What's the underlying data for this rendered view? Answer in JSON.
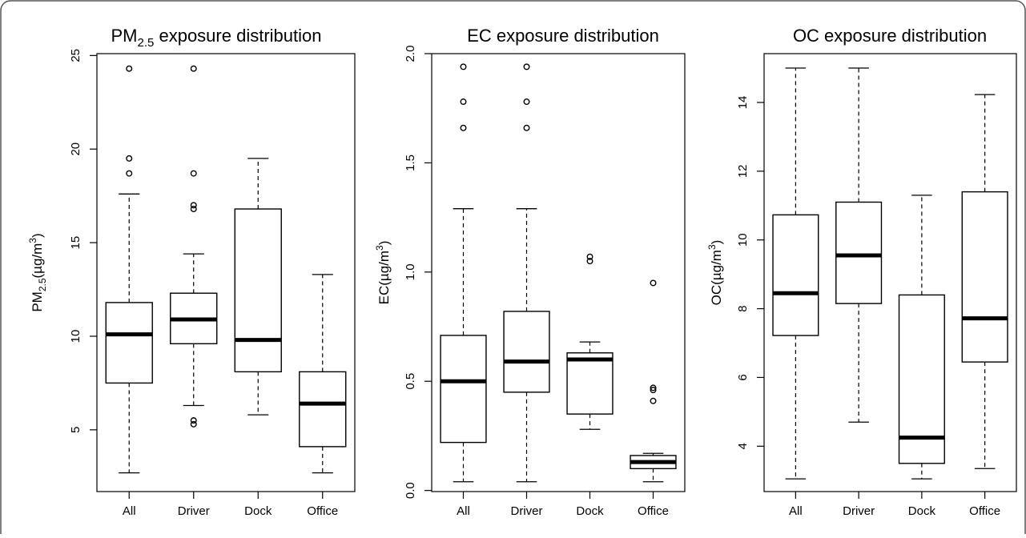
{
  "chart_data": [
    {
      "type": "box",
      "title": {
        "main": "PM",
        "sub": "2.5",
        "rest": " exposure distribution"
      },
      "xlabel": "",
      "ylabel": {
        "main": "PM",
        "sub": "2.5",
        "unit": "(µg/m",
        "sup": "3",
        "close": ")"
      },
      "categories": [
        "All",
        "Driver",
        "Dock",
        "Office"
      ],
      "ylim": [
        1.7,
        25.1
      ],
      "yticks": [
        5,
        10,
        15,
        20,
        25
      ],
      "boxes": [
        {
          "category": "All",
          "whisker_low": 2.7,
          "q1": 7.5,
          "median": 10.1,
          "q3": 11.8,
          "whisker_high": 17.6,
          "outliers": [
            18.7,
            19.5,
            24.3
          ]
        },
        {
          "category": "Driver",
          "whisker_low": 6.3,
          "q1": 9.6,
          "median": 10.9,
          "q3": 12.3,
          "whisker_high": 14.4,
          "outliers": [
            5.3,
            5.5,
            16.8,
            17.0,
            18.7,
            24.3
          ]
        },
        {
          "category": "Dock",
          "whisker_low": 5.8,
          "q1": 8.1,
          "median": 9.8,
          "q3": 16.8,
          "whisker_high": 19.5,
          "outliers": []
        },
        {
          "category": "Office",
          "whisker_low": 2.7,
          "q1": 4.1,
          "median": 6.4,
          "q3": 8.1,
          "whisker_high": 13.3,
          "outliers": []
        }
      ]
    },
    {
      "type": "box",
      "title": {
        "main": "EC exposure distribution"
      },
      "xlabel": "",
      "ylabel": {
        "main": "EC",
        "unit": "(µg/m",
        "sup": "3",
        "close": ")"
      },
      "categories": [
        "All",
        "Driver",
        "Dock",
        "Office"
      ],
      "ylim": [
        -0.005,
        2.0
      ],
      "yticks": [
        "0.0",
        "0.5",
        "1.0",
        "1.5",
        "2.0"
      ],
      "boxes": [
        {
          "category": "All",
          "whisker_low": 0.04,
          "q1": 0.22,
          "median": 0.5,
          "q3": 0.71,
          "whisker_high": 1.29,
          "outliers": [
            1.66,
            1.78,
            1.94
          ]
        },
        {
          "category": "Driver",
          "whisker_low": 0.04,
          "q1": 0.45,
          "median": 0.59,
          "q3": 0.82,
          "whisker_high": 1.29,
          "outliers": [
            1.66,
            1.78,
            1.94
          ]
        },
        {
          "category": "Dock",
          "whisker_low": 0.28,
          "q1": 0.35,
          "median": 0.6,
          "q3": 0.63,
          "whisker_high": 0.68,
          "outliers": [
            1.05,
            1.07
          ]
        },
        {
          "category": "Office",
          "whisker_low": 0.04,
          "q1": 0.1,
          "median": 0.13,
          "q3": 0.16,
          "whisker_high": 0.17,
          "outliers": [
            0.41,
            0.46,
            0.47,
            0.95
          ]
        }
      ]
    },
    {
      "type": "box",
      "title": {
        "main": "OC exposure distribution"
      },
      "xlabel": "",
      "ylabel": {
        "main": "OC",
        "unit": "(µg/m",
        "sup": "3",
        "close": ")"
      },
      "categories": [
        "All",
        "Driver",
        "Dock",
        "Office"
      ],
      "ylim": [
        2.68,
        15.42
      ],
      "yticks": [
        4,
        6,
        8,
        10,
        12,
        14
      ],
      "boxes": [
        {
          "category": "All",
          "whisker_low": 3.05,
          "q1": 7.22,
          "median": 8.45,
          "q3": 10.73,
          "whisker_high": 15.0,
          "outliers": []
        },
        {
          "category": "Driver",
          "whisker_low": 4.7,
          "q1": 8.15,
          "median": 9.55,
          "q3": 11.1,
          "whisker_high": 15.0,
          "outliers": []
        },
        {
          "category": "Dock",
          "whisker_low": 3.05,
          "q1": 3.5,
          "median": 4.25,
          "q3": 8.4,
          "whisker_high": 11.3,
          "outliers": []
        },
        {
          "category": "Office",
          "whisker_low": 3.35,
          "q1": 6.45,
          "median": 7.72,
          "q3": 11.4,
          "whisker_high": 14.23,
          "outliers": []
        }
      ]
    }
  ]
}
